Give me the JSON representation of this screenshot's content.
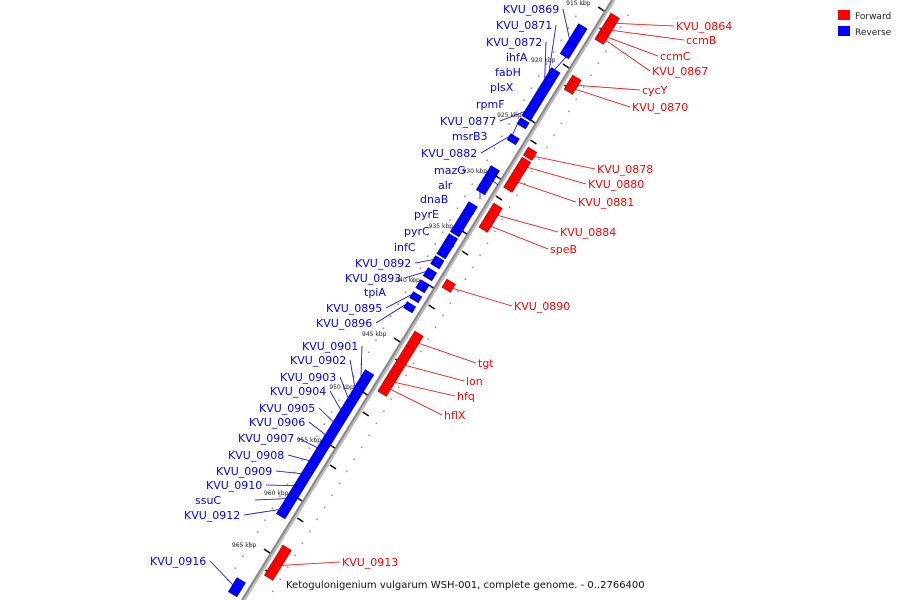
{
  "caption": "Ketogulonigenium vulgarum WSH-001, complete genome. - 0..2766400",
  "legend": [
    {
      "label": "Forward",
      "color": "#ff0000"
    },
    {
      "label": "Reverse",
      "color": "#0000ff"
    }
  ],
  "colors": {
    "forward": "#ff0000",
    "reverse": "#0000ff",
    "axis": "#888888"
  },
  "ticks": [
    "915 kbp",
    "920 kbp",
    "925 kbp",
    "930 kbp",
    "935 kbp",
    "940 kbp",
    "945 kbp",
    "950 kbp",
    "955 kbp",
    "960 kbp",
    "965 kbp"
  ],
  "genes": [
    {
      "name": "KVU_0864",
      "strand": "+"
    },
    {
      "name": "ccmB",
      "strand": "+"
    },
    {
      "name": "ccmC",
      "strand": "+"
    },
    {
      "name": "KVU_0867",
      "strand": "+"
    },
    {
      "name": "cycY",
      "strand": "+"
    },
    {
      "name": "KVU_0870",
      "strand": "+"
    },
    {
      "name": "KVU_0878",
      "strand": "+"
    },
    {
      "name": "KVU_0880",
      "strand": "+"
    },
    {
      "name": "KVU_0881",
      "strand": "+"
    },
    {
      "name": "KVU_0884",
      "strand": "+"
    },
    {
      "name": "speB",
      "strand": "+"
    },
    {
      "name": "KVU_0890",
      "strand": "+"
    },
    {
      "name": "tgt",
      "strand": "+"
    },
    {
      "name": "lon",
      "strand": "+"
    },
    {
      "name": "hfq",
      "strand": "+"
    },
    {
      "name": "hflX",
      "strand": "+"
    },
    {
      "name": "KVU_0913",
      "strand": "+"
    },
    {
      "name": "KVU_0869",
      "strand": "-"
    },
    {
      "name": "KVU_0871",
      "strand": "-"
    },
    {
      "name": "KVU_0872",
      "strand": "-"
    },
    {
      "name": "ihfA",
      "strand": "-"
    },
    {
      "name": "fabH",
      "strand": "-"
    },
    {
      "name": "plsX",
      "strand": "-"
    },
    {
      "name": "rpmF",
      "strand": "-"
    },
    {
      "name": "KVU_0877",
      "strand": "-"
    },
    {
      "name": "msrB3",
      "strand": "-"
    },
    {
      "name": "KVU_0882",
      "strand": "-"
    },
    {
      "name": "mazG",
      "strand": "-"
    },
    {
      "name": "alr",
      "strand": "-"
    },
    {
      "name": "dnaB",
      "strand": "-"
    },
    {
      "name": "pyrE",
      "strand": "-"
    },
    {
      "name": "pyrC",
      "strand": "-"
    },
    {
      "name": "infC",
      "strand": "-"
    },
    {
      "name": "KVU_0892",
      "strand": "-"
    },
    {
      "name": "KVU_0893",
      "strand": "-"
    },
    {
      "name": "tpiA",
      "strand": "-"
    },
    {
      "name": "KVU_0895",
      "strand": "-"
    },
    {
      "name": "KVU_0896",
      "strand": "-"
    },
    {
      "name": "KVU_0901",
      "strand": "-"
    },
    {
      "name": "KVU_0902",
      "strand": "-"
    },
    {
      "name": "KVU_0903",
      "strand": "-"
    },
    {
      "name": "KVU_0904",
      "strand": "-"
    },
    {
      "name": "KVU_0905",
      "strand": "-"
    },
    {
      "name": "KVU_0906",
      "strand": "-"
    },
    {
      "name": "KVU_0907",
      "strand": "-"
    },
    {
      "name": "KVU_0908",
      "strand": "-"
    },
    {
      "name": "KVU_0909",
      "strand": "-"
    },
    {
      "name": "KVU_0910",
      "strand": "-"
    },
    {
      "name": "ssuC",
      "strand": "-"
    },
    {
      "name": "KVU_0912",
      "strand": "-"
    },
    {
      "name": "KVU_0916",
      "strand": "-"
    }
  ]
}
